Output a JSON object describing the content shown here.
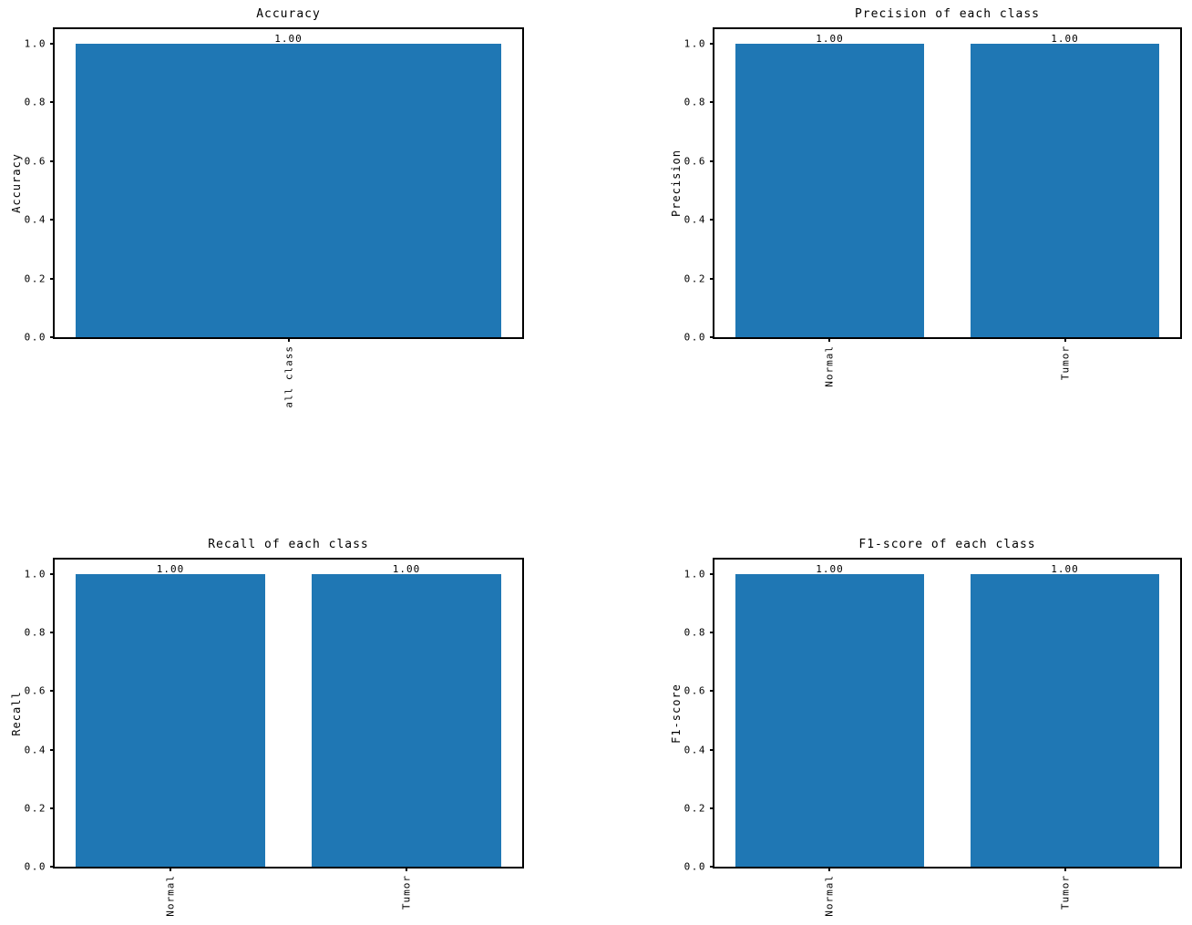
{
  "figure": {
    "background": "#ffffff",
    "bar_color": "#1f77b4",
    "spine_color": "#000000",
    "text_color": "#000000"
  },
  "chart_data": [
    {
      "type": "bar",
      "title": "Accuracy",
      "ylabel": "Accuracy",
      "xlabel": "",
      "categories": [
        "all class"
      ],
      "values": [
        1.0
      ],
      "bar_labels": [
        "1.00"
      ],
      "y_ticks": [
        "0.0",
        "0.2",
        "0.4",
        "0.6",
        "0.8",
        "1.0"
      ],
      "ylim": [
        0,
        1.05
      ],
      "bar_color": "#1f77b4",
      "grid": false,
      "legend_position": "none"
    },
    {
      "type": "bar",
      "title": "Precision of each class",
      "ylabel": "Precision",
      "xlabel": "",
      "categories": [
        "Normal",
        "Tumor"
      ],
      "values": [
        1.0,
        1.0
      ],
      "bar_labels": [
        "1.00",
        "1.00"
      ],
      "y_ticks": [
        "0.0",
        "0.2",
        "0.4",
        "0.6",
        "0.8",
        "1.0"
      ],
      "ylim": [
        0,
        1.05
      ],
      "bar_color": "#1f77b4",
      "grid": false,
      "legend_position": "none"
    },
    {
      "type": "bar",
      "title": "Recall of each class",
      "ylabel": "Recall",
      "xlabel": "",
      "categories": [
        "Normal",
        "Tumor"
      ],
      "values": [
        1.0,
        1.0
      ],
      "bar_labels": [
        "1.00",
        "1.00"
      ],
      "y_ticks": [
        "0.0",
        "0.2",
        "0.4",
        "0.6",
        "0.8",
        "1.0"
      ],
      "ylim": [
        0,
        1.05
      ],
      "bar_color": "#1f77b4",
      "grid": false,
      "legend_position": "none"
    },
    {
      "type": "bar",
      "title": "F1-score of each class",
      "ylabel": "F1-score",
      "xlabel": "",
      "categories": [
        "Normal",
        "Tumor"
      ],
      "values": [
        1.0,
        1.0
      ],
      "bar_labels": [
        "1.00",
        "1.00"
      ],
      "y_ticks": [
        "0.0",
        "0.2",
        "0.4",
        "0.6",
        "0.8",
        "1.0"
      ],
      "ylim": [
        0,
        1.05
      ],
      "bar_color": "#1f77b4",
      "grid": false,
      "legend_position": "none"
    }
  ]
}
